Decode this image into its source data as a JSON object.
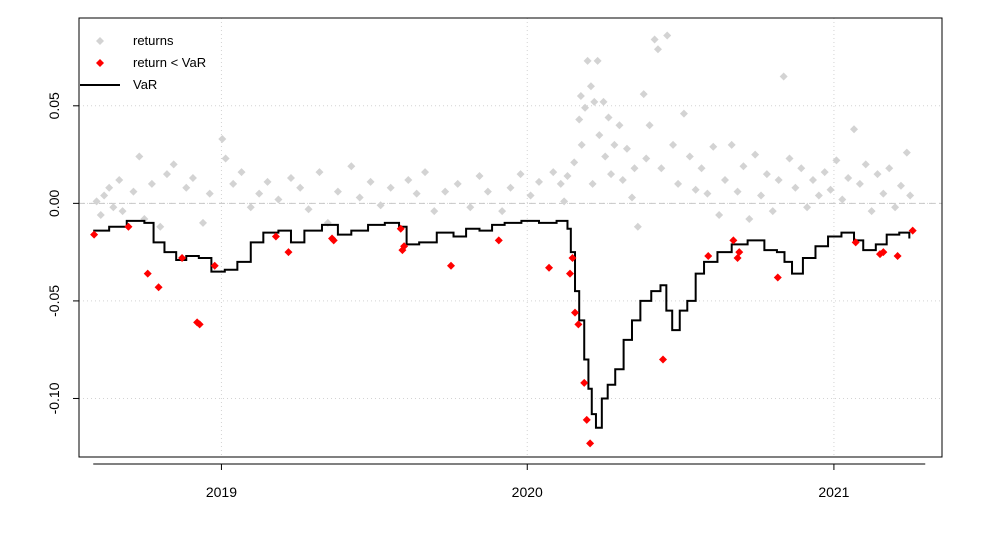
{
  "chart_data": {
    "type": "scatter",
    "title": "",
    "xlabel": "",
    "ylabel": "",
    "x_range": [
      "2018-07-15",
      "2021-05-10"
    ],
    "ylim": [
      -0.13,
      0.095
    ],
    "x_ticks": [
      {
        "date": "2019-01-01",
        "label": "2019"
      },
      {
        "date": "2020-01-01",
        "label": "2020"
      },
      {
        "date": "2021-01-01",
        "label": "2021"
      }
    ],
    "y_ticks": [
      {
        "value": 0.05,
        "label": "0.05"
      },
      {
        "value": 0.0,
        "label": "0.00"
      },
      {
        "value": -0.05,
        "label": "-0.05"
      },
      {
        "value": -0.1,
        "label": "-0.10"
      }
    ],
    "grid": "dotted",
    "zero_line": "dashed",
    "legend": {
      "position": "top-left",
      "entries": [
        {
          "label": "returns",
          "color": "#d3d3d3",
          "symbol": "diamond"
        },
        {
          "label": "return < VaR",
          "color": "#ff0000",
          "symbol": "diamond"
        },
        {
          "label": "VaR",
          "color": "#000000",
          "symbol": "line"
        }
      ]
    },
    "series": [
      {
        "name": "VaR",
        "type": "step-line",
        "color": "#000000",
        "points": [
          [
            "2018-08-01",
            -0.014
          ],
          [
            "2018-08-20",
            -0.012
          ],
          [
            "2018-09-10",
            -0.009
          ],
          [
            "2018-10-01",
            -0.01
          ],
          [
            "2018-10-12",
            -0.02
          ],
          [
            "2018-10-25",
            -0.025
          ],
          [
            "2018-11-08",
            -0.029
          ],
          [
            "2018-11-20",
            -0.027
          ],
          [
            "2018-12-05",
            -0.028
          ],
          [
            "2018-12-20",
            -0.035
          ],
          [
            "2019-01-05",
            -0.034
          ],
          [
            "2019-01-20",
            -0.03
          ],
          [
            "2019-02-05",
            -0.02
          ],
          [
            "2019-02-20",
            -0.015
          ],
          [
            "2019-03-10",
            -0.014
          ],
          [
            "2019-03-25",
            -0.02
          ],
          [
            "2019-04-10",
            -0.014
          ],
          [
            "2019-05-01",
            -0.011
          ],
          [
            "2019-05-20",
            -0.016
          ],
          [
            "2019-06-05",
            -0.014
          ],
          [
            "2019-06-25",
            -0.011
          ],
          [
            "2019-07-15",
            -0.01
          ],
          [
            "2019-08-01",
            -0.012
          ],
          [
            "2019-08-10",
            -0.021
          ],
          [
            "2019-08-25",
            -0.02
          ],
          [
            "2019-09-15",
            -0.015
          ],
          [
            "2019-10-05",
            -0.017
          ],
          [
            "2019-10-20",
            -0.013
          ],
          [
            "2019-11-05",
            -0.014
          ],
          [
            "2019-11-20",
            -0.011
          ],
          [
            "2019-12-05",
            -0.01
          ],
          [
            "2019-12-25",
            -0.009
          ],
          [
            "2020-01-15",
            -0.01
          ],
          [
            "2020-02-05",
            -0.009
          ],
          [
            "2020-02-18",
            -0.013
          ],
          [
            "2020-02-22",
            -0.025
          ],
          [
            "2020-02-27",
            -0.045
          ],
          [
            "2020-03-03",
            -0.06
          ],
          [
            "2020-03-09",
            -0.08
          ],
          [
            "2020-03-14",
            -0.095
          ],
          [
            "2020-03-18",
            -0.108
          ],
          [
            "2020-03-23",
            -0.115
          ],
          [
            "2020-03-30",
            -0.1
          ],
          [
            "2020-04-06",
            -0.093
          ],
          [
            "2020-04-15",
            -0.085
          ],
          [
            "2020-04-25",
            -0.07
          ],
          [
            "2020-05-05",
            -0.06
          ],
          [
            "2020-05-15",
            -0.05
          ],
          [
            "2020-05-28",
            -0.045
          ],
          [
            "2020-06-08",
            -0.042
          ],
          [
            "2020-06-15",
            -0.055
          ],
          [
            "2020-06-22",
            -0.065
          ],
          [
            "2020-07-01",
            -0.055
          ],
          [
            "2020-07-10",
            -0.05
          ],
          [
            "2020-07-20",
            -0.036
          ],
          [
            "2020-07-30",
            -0.03
          ],
          [
            "2020-08-15",
            -0.025
          ],
          [
            "2020-09-01",
            -0.021
          ],
          [
            "2020-09-20",
            -0.019
          ],
          [
            "2020-10-10",
            -0.024
          ],
          [
            "2020-10-25",
            -0.025
          ],
          [
            "2020-11-03",
            -0.03
          ],
          [
            "2020-11-12",
            -0.036
          ],
          [
            "2020-11-25",
            -0.028
          ],
          [
            "2020-12-10",
            -0.022
          ],
          [
            "2020-12-25",
            -0.017
          ],
          [
            "2021-01-10",
            -0.015
          ],
          [
            "2021-01-25",
            -0.019
          ],
          [
            "2021-02-05",
            -0.024
          ],
          [
            "2021-02-20",
            -0.021
          ],
          [
            "2021-03-05",
            -0.016
          ],
          [
            "2021-03-20",
            -0.015
          ],
          [
            "2021-04-01",
            -0.018
          ]
        ]
      },
      {
        "name": "return < VaR",
        "type": "points",
        "color": "#ff0000",
        "points": [
          [
            "2018-08-02",
            -0.016
          ],
          [
            "2018-09-12",
            -0.012
          ],
          [
            "2018-10-05",
            -0.036
          ],
          [
            "2018-10-18",
            -0.043
          ],
          [
            "2018-11-15",
            -0.028
          ],
          [
            "2018-12-03",
            -0.061
          ],
          [
            "2018-12-06",
            -0.062
          ],
          [
            "2018-12-24",
            -0.032
          ],
          [
            "2019-03-07",
            -0.017
          ],
          [
            "2019-03-22",
            -0.025
          ],
          [
            "2019-05-13",
            -0.018
          ],
          [
            "2019-05-15",
            -0.019
          ],
          [
            "2019-08-05",
            -0.024
          ],
          [
            "2019-08-07",
            -0.022
          ],
          [
            "2019-08-03",
            -0.013
          ],
          [
            "2019-10-02",
            -0.032
          ],
          [
            "2019-11-28",
            -0.019
          ],
          [
            "2020-01-27",
            -0.033
          ],
          [
            "2020-02-21",
            -0.036
          ],
          [
            "2020-02-24",
            -0.028
          ],
          [
            "2020-02-27",
            -0.056
          ],
          [
            "2020-03-02",
            -0.062
          ],
          [
            "2020-03-09",
            -0.092
          ],
          [
            "2020-03-12",
            -0.111
          ],
          [
            "2020-03-16",
            -0.123
          ],
          [
            "2020-06-11",
            -0.08
          ],
          [
            "2020-08-04",
            -0.027
          ],
          [
            "2020-09-08",
            -0.028
          ],
          [
            "2020-09-10",
            -0.025
          ],
          [
            "2020-09-03",
            -0.019
          ],
          [
            "2020-10-26",
            -0.038
          ],
          [
            "2021-01-27",
            -0.02
          ],
          [
            "2021-02-25",
            -0.026
          ],
          [
            "2021-03-01",
            -0.025
          ],
          [
            "2021-03-18",
            -0.027
          ],
          [
            "2021-04-05",
            -0.014
          ]
        ]
      },
      {
        "name": "returns",
        "type": "points",
        "color": "#d3d3d3",
        "points": [
          [
            "2018-08-05",
            0.001
          ],
          [
            "2018-08-10",
            -0.006
          ],
          [
            "2018-08-14",
            0.004
          ],
          [
            "2018-08-20",
            0.008
          ],
          [
            "2018-08-25",
            -0.002
          ],
          [
            "2018-09-01",
            0.012
          ],
          [
            "2018-09-05",
            -0.004
          ],
          [
            "2018-09-18",
            0.006
          ],
          [
            "2018-09-25",
            0.024
          ],
          [
            "2018-10-01",
            -0.008
          ],
          [
            "2018-10-10",
            0.01
          ],
          [
            "2018-10-20",
            -0.012
          ],
          [
            "2018-10-28",
            0.015
          ],
          [
            "2018-11-05",
            0.02
          ],
          [
            "2018-11-20",
            0.008
          ],
          [
            "2018-11-28",
            0.013
          ],
          [
            "2018-12-10",
            -0.01
          ],
          [
            "2018-12-18",
            0.005
          ],
          [
            "2019-01-02",
            0.033
          ],
          [
            "2019-01-06",
            0.023
          ],
          [
            "2019-01-15",
            0.01
          ],
          [
            "2019-01-25",
            0.016
          ],
          [
            "2019-02-05",
            -0.002
          ],
          [
            "2019-02-15",
            0.005
          ],
          [
            "2019-02-25",
            0.011
          ],
          [
            "2019-03-10",
            0.002
          ],
          [
            "2019-03-25",
            0.013
          ],
          [
            "2019-04-05",
            0.008
          ],
          [
            "2019-04-15",
            -0.003
          ],
          [
            "2019-04-28",
            0.016
          ],
          [
            "2019-05-08",
            -0.01
          ],
          [
            "2019-05-20",
            0.006
          ],
          [
            "2019-06-05",
            0.019
          ],
          [
            "2019-06-15",
            0.003
          ],
          [
            "2019-06-28",
            0.011
          ],
          [
            "2019-07-10",
            -0.001
          ],
          [
            "2019-07-22",
            0.008
          ],
          [
            "2019-08-12",
            0.012
          ],
          [
            "2019-08-22",
            0.005
          ],
          [
            "2019-09-01",
            0.016
          ],
          [
            "2019-09-12",
            -0.004
          ],
          [
            "2019-09-25",
            0.006
          ],
          [
            "2019-10-10",
            0.01
          ],
          [
            "2019-10-25",
            -0.002
          ],
          [
            "2019-11-05",
            0.014
          ],
          [
            "2019-11-15",
            0.006
          ],
          [
            "2019-12-02",
            -0.004
          ],
          [
            "2019-12-12",
            0.008
          ],
          [
            "2019-12-24",
            0.015
          ],
          [
            "2020-01-05",
            0.004
          ],
          [
            "2020-01-15",
            0.011
          ],
          [
            "2020-02-01",
            0.016
          ],
          [
            "2020-02-10",
            0.01
          ],
          [
            "2020-02-14",
            0.001
          ],
          [
            "2020-02-18",
            0.014
          ],
          [
            "2020-02-26",
            0.021
          ],
          [
            "2020-03-03",
            0.043
          ],
          [
            "2020-03-05",
            0.055
          ],
          [
            "2020-03-06",
            0.03
          ],
          [
            "2020-03-10",
            0.049
          ],
          [
            "2020-03-13",
            0.073
          ],
          [
            "2020-03-17",
            0.06
          ],
          [
            "2020-03-19",
            0.01
          ],
          [
            "2020-03-21",
            0.052
          ],
          [
            "2020-03-25",
            0.073
          ],
          [
            "2020-03-27",
            0.035
          ],
          [
            "2020-04-01",
            0.052
          ],
          [
            "2020-04-03",
            0.024
          ],
          [
            "2020-04-07",
            0.044
          ],
          [
            "2020-04-10",
            0.015
          ],
          [
            "2020-04-14",
            0.03
          ],
          [
            "2020-04-20",
            0.04
          ],
          [
            "2020-04-24",
            0.012
          ],
          [
            "2020-04-29",
            0.028
          ],
          [
            "2020-05-05",
            0.003
          ],
          [
            "2020-05-08",
            0.018
          ],
          [
            "2020-05-12",
            -0.012
          ],
          [
            "2020-05-19",
            0.056
          ],
          [
            "2020-05-22",
            0.023
          ],
          [
            "2020-05-26",
            0.04
          ],
          [
            "2020-06-01",
            0.084
          ],
          [
            "2020-06-05",
            0.079
          ],
          [
            "2020-06-09",
            0.018
          ],
          [
            "2020-06-16",
            0.086
          ],
          [
            "2020-06-23",
            0.03
          ],
          [
            "2020-06-29",
            0.01
          ],
          [
            "2020-07-06",
            0.046
          ],
          [
            "2020-07-13",
            0.024
          ],
          [
            "2020-07-20",
            0.007
          ],
          [
            "2020-07-27",
            0.018
          ],
          [
            "2020-08-03",
            0.005
          ],
          [
            "2020-08-10",
            0.029
          ],
          [
            "2020-08-17",
            -0.006
          ],
          [
            "2020-08-24",
            0.012
          ],
          [
            "2020-09-01",
            0.03
          ],
          [
            "2020-09-08",
            0.006
          ],
          [
            "2020-09-15",
            0.019
          ],
          [
            "2020-09-22",
            -0.008
          ],
          [
            "2020-09-29",
            0.025
          ],
          [
            "2020-10-06",
            0.004
          ],
          [
            "2020-10-13",
            0.015
          ],
          [
            "2020-10-20",
            -0.004
          ],
          [
            "2020-10-27",
            0.012
          ],
          [
            "2020-11-02",
            0.065
          ],
          [
            "2020-11-09",
            0.023
          ],
          [
            "2020-11-16",
            0.008
          ],
          [
            "2020-11-23",
            0.018
          ],
          [
            "2020-11-30",
            -0.002
          ],
          [
            "2020-12-07",
            0.012
          ],
          [
            "2020-12-14",
            0.004
          ],
          [
            "2020-12-21",
            0.016
          ],
          [
            "2020-12-28",
            0.007
          ],
          [
            "2021-01-04",
            0.022
          ],
          [
            "2021-01-11",
            0.002
          ],
          [
            "2021-01-18",
            0.013
          ],
          [
            "2021-01-25",
            0.038
          ],
          [
            "2021-02-01",
            0.01
          ],
          [
            "2021-02-08",
            0.02
          ],
          [
            "2021-02-15",
            -0.004
          ],
          [
            "2021-02-22",
            0.015
          ],
          [
            "2021-03-01",
            0.005
          ],
          [
            "2021-03-08",
            0.018
          ],
          [
            "2021-03-15",
            -0.002
          ],
          [
            "2021-03-22",
            0.009
          ],
          [
            "2021-03-29",
            0.026
          ],
          [
            "2021-04-02",
            0.004
          ]
        ]
      }
    ]
  }
}
